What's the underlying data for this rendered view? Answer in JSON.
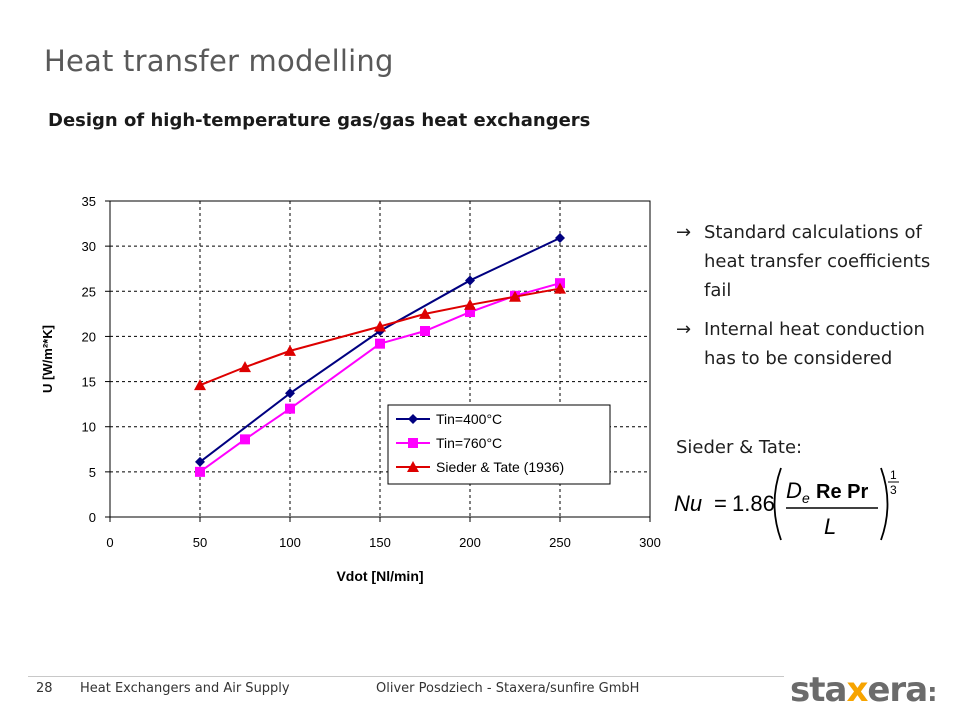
{
  "slide": {
    "title": "Heat transfer modelling",
    "subtitle": "Design of high-temperature gas/gas heat exchangers"
  },
  "bullets": [
    {
      "arrow": "→",
      "text": "Standard calculations of heat transfer coefficients fail"
    },
    {
      "arrow": "→",
      "text": "Internal heat conduction has to be considered"
    }
  ],
  "sieder_label": "Sieder & Tate:",
  "formula": {
    "lhs": "Nu",
    "equals": "=",
    "coefficient": "1.86",
    "numerator_symbol": "D",
    "numerator_subscript": "e",
    "numerator_text": "Re Pr",
    "denominator": "L",
    "exponent_num": "1",
    "exponent_den": "3"
  },
  "footer": {
    "page_number": "28",
    "section": "Heat Exchangers and Air Supply",
    "author": "Oliver Posdziech - Staxera/sunfire GmbH"
  },
  "logo": {
    "part1": "sta",
    "part2": "x",
    "part3": "era",
    "dots": ":",
    "accent_color": "#f7a400",
    "main_color": "#6b6b6b"
  },
  "chart_data": {
    "type": "line",
    "title": "",
    "xlabel": "Vdot [Nl/min]",
    "ylabel": "U [W/m²*K]",
    "xlim": [
      0,
      300
    ],
    "ylim": [
      0,
      35
    ],
    "xticks": [
      0,
      50,
      100,
      150,
      200,
      250,
      300
    ],
    "yticks": [
      0,
      5,
      10,
      15,
      20,
      25,
      30,
      35
    ],
    "grid": "dashed",
    "legend_position": "inside-lower-right",
    "series": [
      {
        "name": "Tin=400°C",
        "color": "#000080",
        "marker": "diamond",
        "x": [
          50,
          100,
          150,
          200,
          250
        ],
        "y": [
          6.1,
          13.7,
          20.6,
          26.2,
          30.9
        ]
      },
      {
        "name": "Tin=760°C",
        "color": "#ff00ff",
        "marker": "square",
        "x": [
          50,
          75,
          100,
          150,
          175,
          200,
          225,
          250
        ],
        "y": [
          5.0,
          8.6,
          12.0,
          19.2,
          20.6,
          22.7,
          24.5,
          25.9
        ]
      },
      {
        "name": "Sieder & Tate (1936)",
        "color": "#dd0000",
        "marker": "triangle",
        "x": [
          50,
          75,
          100,
          150,
          175,
          200,
          225,
          250
        ],
        "y": [
          14.6,
          16.6,
          18.4,
          21.1,
          22.5,
          23.5,
          24.4,
          25.3
        ]
      }
    ]
  }
}
